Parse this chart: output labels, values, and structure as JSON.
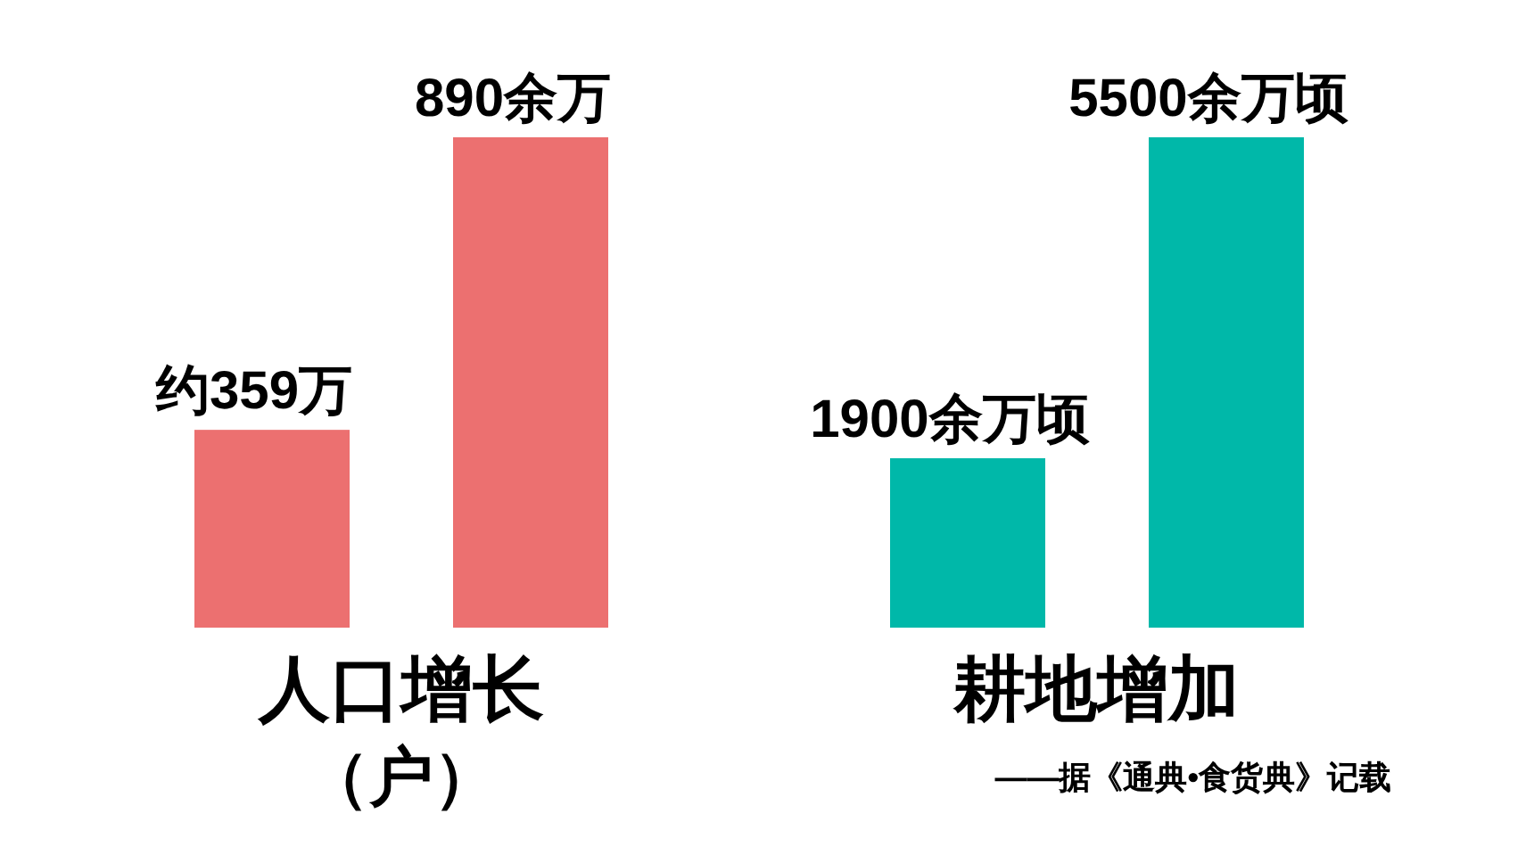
{
  "chart_data": [
    {
      "type": "bar",
      "xlabel": "人口增长",
      "annotations": [
        "（户）"
      ],
      "categories": [
        null,
        null
      ],
      "values": [
        359,
        890
      ],
      "value_labels": [
        "约359万",
        "890余万"
      ],
      "color": "#ec7070"
    },
    {
      "type": "bar",
      "xlabel": "耕地增加",
      "annotations": [
        "——据《通典•食货典》记载"
      ],
      "categories": [
        null,
        null
      ],
      "values": [
        1900,
        5500
      ],
      "value_labels": [
        "1900余万顷",
        "5500余万顷"
      ],
      "color": "#00b8a9"
    }
  ]
}
